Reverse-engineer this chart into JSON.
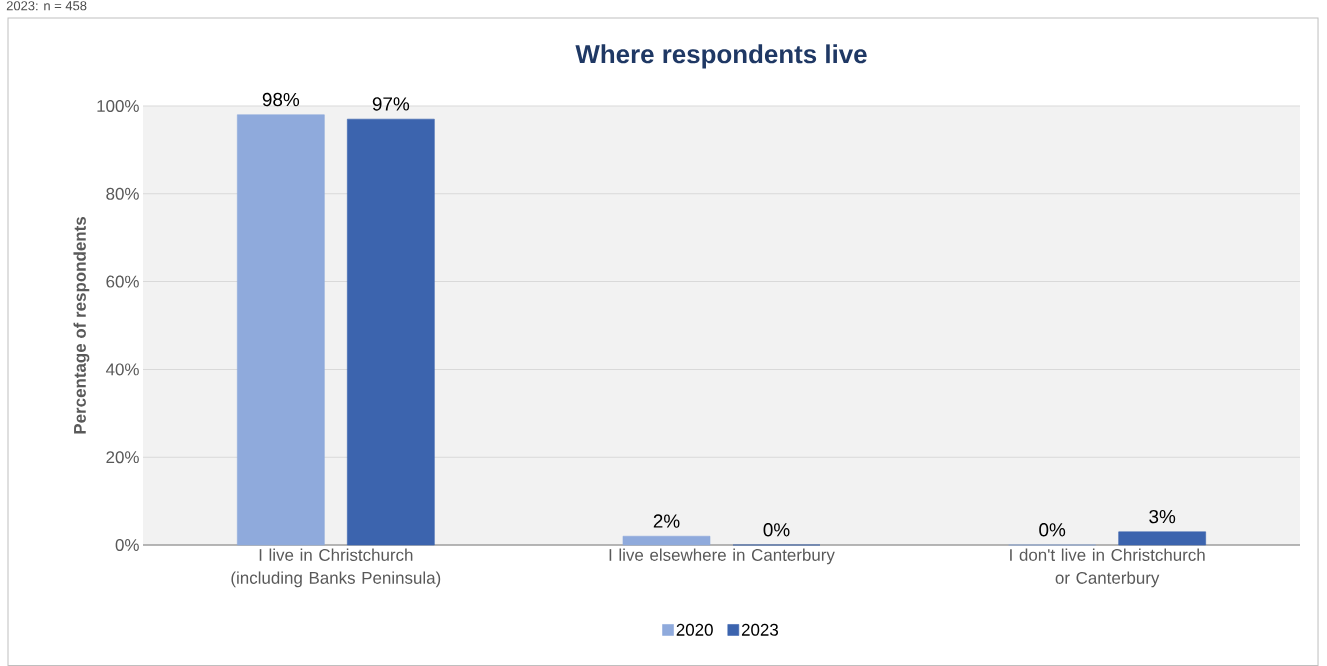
{
  "chart_data": {
    "type": "bar",
    "title": "Where respondents live",
    "ylabel": "Percentage of respondents",
    "annotations": [
      "2023: n = 458"
    ],
    "categories": [
      "I live in Christchurch (including Banks Peninsula)",
      "I live elsewhere in Canterbury",
      "I don't live in Christchurch or Canterbury"
    ],
    "series": [
      {
        "name": "2020",
        "color": "#8faadc",
        "values": [
          98,
          2,
          0
        ],
        "value_labels": [
          "98%",
          "2%",
          "0%"
        ]
      },
      {
        "name": "2023",
        "color": "#3c64ae",
        "values": [
          97,
          0,
          3
        ],
        "value_labels": [
          "97%",
          "0%",
          "3%"
        ]
      }
    ],
    "ylim": [
      0,
      100
    ],
    "yticks": [
      {
        "value": 0,
        "label": "0%"
      },
      {
        "value": 20,
        "label": "20%"
      },
      {
        "value": 40,
        "label": "40%"
      },
      {
        "value": 60,
        "label": "60%"
      },
      {
        "value": 80,
        "label": "80%"
      },
      {
        "value": 100,
        "label": "100%"
      }
    ],
    "grid": "y",
    "legend": "bottom"
  }
}
